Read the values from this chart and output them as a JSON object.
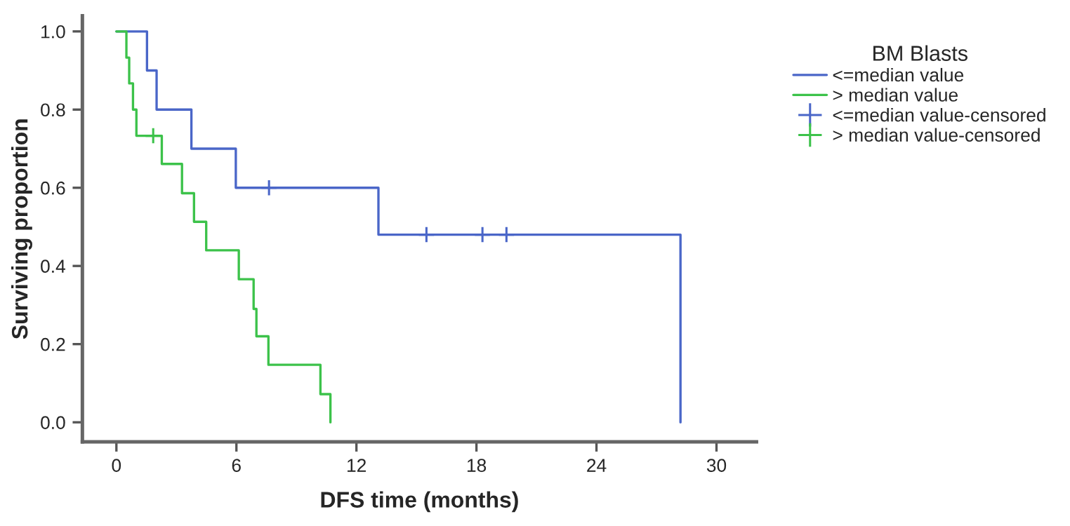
{
  "chart_data": {
    "type": "step",
    "xlabel": "DFS time (months)",
    "ylabel": "Surviving proportion",
    "legend_title": "BM Blasts",
    "legend": "right",
    "grid": false,
    "xlim": [
      -1.7,
      32
    ],
    "xticks": [
      0,
      6,
      12,
      18,
      24,
      30
    ],
    "ylim": [
      -0.05,
      1.04
    ],
    "yticks": [
      {
        "value": 0,
        "label": "0.0"
      },
      {
        "value": 0.2,
        "label": "0.2"
      },
      {
        "value": 0.4,
        "label": "0.4"
      },
      {
        "value": 0.6,
        "label": "0.6"
      },
      {
        "value": 0.8,
        "label": "0.8"
      },
      {
        "value": 1,
        "label": "1.0"
      }
    ],
    "series": [
      {
        "name": "<=median value",
        "color": "#4a66c8",
        "x": [
          0,
          1.53,
          2.01,
          3.75,
          5.97,
          13.1,
          28.2
        ],
        "values": [
          1,
          0.9,
          0.8,
          0.7,
          0.6,
          0.48,
          0
        ]
      },
      {
        "name": "> median value",
        "color": "#3cc24a",
        "x": [
          0,
          0.5,
          0.64,
          0.83,
          1.0,
          2.27,
          3.28,
          3.88,
          4.49,
          6.12,
          6.86,
          7.0,
          7.6,
          10.2,
          10.7
        ],
        "values": [
          1,
          0.933,
          0.867,
          0.8,
          0.733,
          0.661,
          0.586,
          0.513,
          0.44,
          0.366,
          0.29,
          0.22,
          0.147,
          0.072,
          0
        ]
      },
      {
        "name": "<=median value-censored",
        "type": "scatter",
        "marker": "cross",
        "color": "#4a66c8",
        "x": [
          7.63,
          15.5,
          18.3,
          19.5
        ],
        "values": [
          0.6,
          0.48,
          0.48,
          0.48
        ]
      },
      {
        "name": "> median value-censored",
        "type": "scatter",
        "marker": "cross",
        "color": "#3cc24a",
        "x": [
          1.84
        ],
        "values": [
          0.733
        ]
      }
    ]
  }
}
